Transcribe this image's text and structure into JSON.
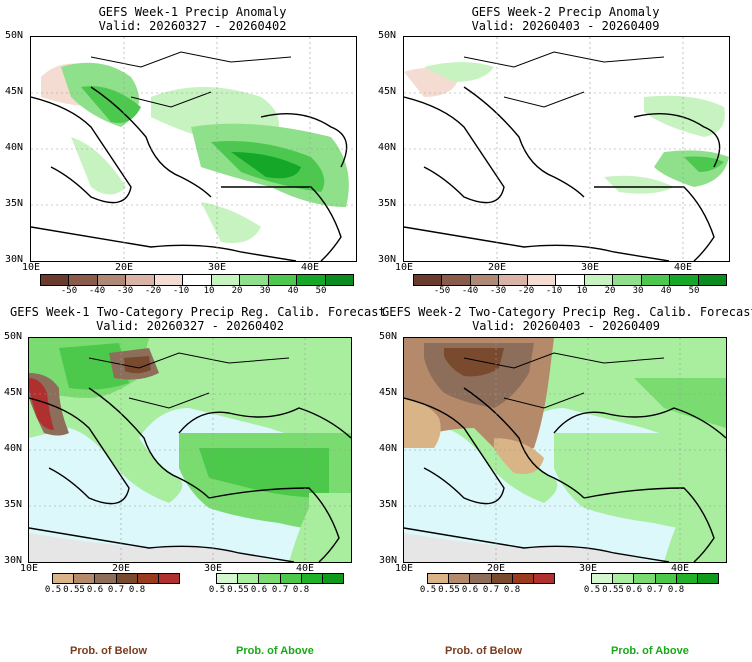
{
  "panels": {
    "p1": {
      "title": "GEFS Week-1 Precip Anomaly",
      "valid": "Valid: 20260327 - 20260402"
    },
    "p2": {
      "title": "GEFS Week-2 Precip Anomaly",
      "valid": "Valid: 20260403 - 20260409"
    },
    "p3": {
      "title": "GEFS Week-1 Two-Category Precip Reg. Calib. Forecast",
      "valid": "Valid: 20260327 - 20260402"
    },
    "p4": {
      "title": "GEFS Week-2 Two-Category Precip Reg. Calib. Forecast",
      "valid": "Valid: 20260403 - 20260409"
    }
  },
  "axes": {
    "lat_labels": [
      "50N",
      "45N",
      "40N",
      "35N",
      "30N"
    ],
    "lon_labels": [
      "10E",
      "20E",
      "30E",
      "40E"
    ]
  },
  "anomaly_scale": {
    "labels": [
      "-50",
      "-40",
      "-30",
      "-20",
      "-10",
      "10",
      "20",
      "30",
      "40",
      "50"
    ],
    "colors": [
      "#6b3b2e",
      "#8a5a4a",
      "#b08876",
      "#d9b4a6",
      "#f4dcd2",
      "#ffffff",
      "#c6f3c0",
      "#8fe08a",
      "#4cc84f",
      "#15a828",
      "#0a8c1e"
    ]
  },
  "below_scale": {
    "labels": [
      "0.5",
      "0.55",
      "0.6",
      "0.7",
      "0.8"
    ],
    "colors": [
      "#d8b487",
      "#b48a6a",
      "#8d6e5b",
      "#7a4a2e",
      "#9a3a1e",
      "#b03030"
    ]
  },
  "above_scale": {
    "labels": [
      "0.5",
      "0.55",
      "0.6",
      "0.7",
      "0.8"
    ],
    "colors": [
      "#d4f7d0",
      "#a8ee9e",
      "#7adc70",
      "#4cc84a",
      "#22b22a",
      "#0f9a1a"
    ]
  },
  "captions": {
    "below": "Prob. of Below",
    "above": "Prob. of Above"
  },
  "legend_colors": {
    "below": "#7a3b1e",
    "above": "#18a818",
    "sea": "#dcf8fa",
    "land_gray": "#e6e6e6"
  }
}
